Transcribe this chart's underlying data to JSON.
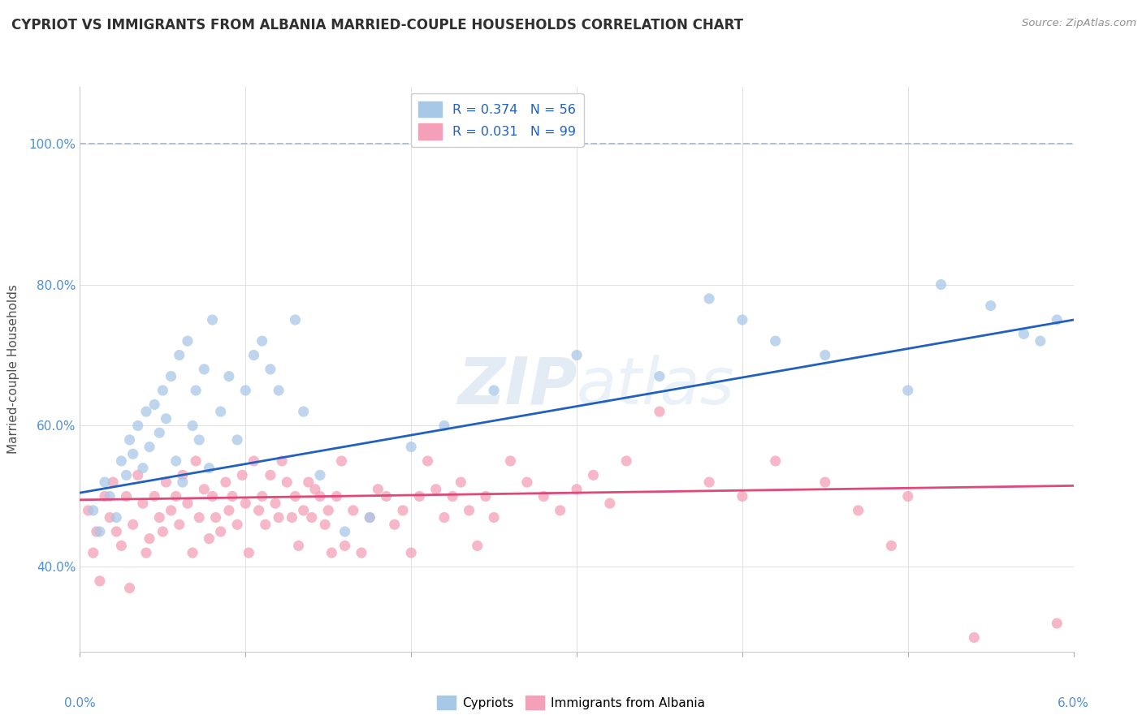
{
  "title": "CYPRIOT VS IMMIGRANTS FROM ALBANIA MARRIED-COUPLE HOUSEHOLDS CORRELATION CHART",
  "source": "Source: ZipAtlas.com",
  "ylabel": "Married-couple Households",
  "watermark_zip": "ZIP",
  "watermark_atlas": "atlas",
  "legend_1_label": "R = 0.374   N = 56",
  "legend_2_label": "R = 0.031   N = 99",
  "legend_cat1": "Cypriots",
  "legend_cat2": "Immigrants from Albania",
  "cypriot_color": "#A8C8E8",
  "albania_color": "#F4A0B8",
  "trendline_cypriot_color": "#2060C0",
  "trendline_albania_color": "#E04878",
  "dashed_line_color": "#B0C0D0",
  "background_color": "#FFFFFF",
  "grid_color": "#E0E0E0",
  "ytick_color": "#5090D0",
  "xtick_color": "#5090D0",
  "title_color": "#303030",
  "source_color": "#909090",
  "ylabel_color": "#505050",
  "legend_text_color": "#2060C0",
  "xlim": [
    0.0,
    6.0
  ],
  "ylim": [
    28.0,
    108.0
  ],
  "yticks": [
    40,
    60,
    80,
    100
  ],
  "cypriot_x": [
    0.08,
    0.12,
    0.15,
    0.18,
    0.22,
    0.25,
    0.28,
    0.3,
    0.32,
    0.35,
    0.38,
    0.4,
    0.42,
    0.45,
    0.48,
    0.5,
    0.52,
    0.55,
    0.58,
    0.6,
    0.62,
    0.65,
    0.68,
    0.7,
    0.72,
    0.75,
    0.78,
    0.8,
    0.85,
    0.9,
    0.95,
    1.0,
    1.05,
    1.1,
    1.15,
    1.2,
    1.3,
    1.35,
    1.45,
    1.6,
    1.75,
    2.0,
    2.2,
    2.5,
    3.0,
    3.5,
    4.0,
    4.5,
    5.0,
    5.2,
    5.5,
    5.7,
    5.8,
    5.9,
    4.2,
    3.8
  ],
  "cypriot_y": [
    48,
    45,
    52,
    50,
    47,
    55,
    53,
    58,
    56,
    60,
    54,
    62,
    57,
    63,
    59,
    65,
    61,
    67,
    55,
    70,
    52,
    72,
    60,
    65,
    58,
    68,
    54,
    75,
    62,
    67,
    58,
    65,
    70,
    72,
    68,
    65,
    75,
    62,
    53,
    45,
    47,
    57,
    60,
    65,
    70,
    67,
    75,
    70,
    65,
    80,
    77,
    73,
    72,
    75,
    72,
    78
  ],
  "albania_x": [
    0.05,
    0.08,
    0.1,
    0.12,
    0.15,
    0.18,
    0.2,
    0.22,
    0.25,
    0.28,
    0.3,
    0.32,
    0.35,
    0.38,
    0.4,
    0.42,
    0.45,
    0.48,
    0.5,
    0.52,
    0.55,
    0.58,
    0.6,
    0.62,
    0.65,
    0.68,
    0.7,
    0.72,
    0.75,
    0.78,
    0.8,
    0.82,
    0.85,
    0.88,
    0.9,
    0.92,
    0.95,
    0.98,
    1.0,
    1.02,
    1.05,
    1.08,
    1.1,
    1.12,
    1.15,
    1.18,
    1.2,
    1.22,
    1.25,
    1.28,
    1.3,
    1.32,
    1.35,
    1.38,
    1.4,
    1.42,
    1.45,
    1.48,
    1.5,
    1.52,
    1.55,
    1.58,
    1.6,
    1.65,
    1.7,
    1.75,
    1.8,
    1.85,
    1.9,
    1.95,
    2.0,
    2.05,
    2.1,
    2.15,
    2.2,
    2.25,
    2.3,
    2.35,
    2.4,
    2.45,
    2.5,
    2.6,
    2.7,
    2.8,
    2.9,
    3.0,
    3.1,
    3.2,
    3.3,
    3.5,
    3.8,
    4.0,
    4.2,
    4.5,
    4.7,
    4.9,
    5.0,
    5.4,
    5.9
  ],
  "albania_y": [
    48,
    42,
    45,
    38,
    50,
    47,
    52,
    45,
    43,
    50,
    37,
    46,
    53,
    49,
    42,
    44,
    50,
    47,
    45,
    52,
    48,
    50,
    46,
    53,
    49,
    42,
    55,
    47,
    51,
    44,
    50,
    47,
    45,
    52,
    48,
    50,
    46,
    53,
    49,
    42,
    55,
    48,
    50,
    46,
    53,
    49,
    47,
    55,
    52,
    47,
    50,
    43,
    48,
    52,
    47,
    51,
    50,
    46,
    48,
    42,
    50,
    55,
    43,
    48,
    42,
    47,
    51,
    50,
    46,
    48,
    42,
    50,
    55,
    51,
    47,
    50,
    52,
    48,
    43,
    50,
    47,
    55,
    52,
    50,
    48,
    51,
    53,
    49,
    55,
    62,
    52,
    50,
    55,
    52,
    48,
    43,
    50,
    30,
    32
  ]
}
